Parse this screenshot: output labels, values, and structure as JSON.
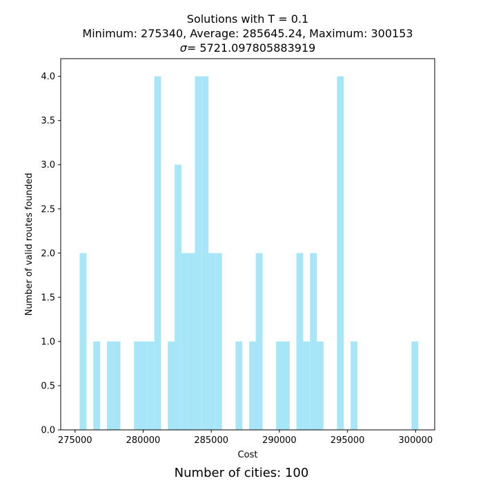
{
  "chart_data": {
    "type": "bar",
    "title_line1": "Solutions with T = 0.1",
    "title_line2": "Minimum: 275340, Average: 285645.24, Maximum: 300153",
    "title_sigma_symbol": "σ",
    "title_sigma_value": "= 5721.097805883919",
    "xlabel": "Cost",
    "ylabel": "Number of valid routes founded",
    "xlim": [
      273950,
      301400
    ],
    "ylim": [
      0,
      4.2
    ],
    "xticks": [
      275000,
      280000,
      285000,
      290000,
      295000,
      300000
    ],
    "yticks": [
      "0.0",
      "0.5",
      "1.0",
      "1.5",
      "2.0",
      "2.5",
      "3.0",
      "3.5",
      "4.0"
    ],
    "bin_width": 496.26,
    "bar_color": "#a6e6f8",
    "bins": [
      {
        "x": 275340,
        "count": 2
      },
      {
        "x": 276340,
        "count": 1
      },
      {
        "x": 277340,
        "count": 1
      },
      {
        "x": 277830,
        "count": 1
      },
      {
        "x": 279330,
        "count": 1
      },
      {
        "x": 279820,
        "count": 1
      },
      {
        "x": 280320,
        "count": 1
      },
      {
        "x": 280820,
        "count": 4
      },
      {
        "x": 281810,
        "count": 1
      },
      {
        "x": 282310,
        "count": 3
      },
      {
        "x": 282810,
        "count": 2
      },
      {
        "x": 283300,
        "count": 2
      },
      {
        "x": 283800,
        "count": 4
      },
      {
        "x": 284300,
        "count": 4
      },
      {
        "x": 284790,
        "count": 2
      },
      {
        "x": 285290,
        "count": 2
      },
      {
        "x": 286780,
        "count": 1
      },
      {
        "x": 287780,
        "count": 1
      },
      {
        "x": 288270,
        "count": 2
      },
      {
        "x": 289760,
        "count": 1
      },
      {
        "x": 290260,
        "count": 1
      },
      {
        "x": 291250,
        "count": 2
      },
      {
        "x": 291750,
        "count": 1
      },
      {
        "x": 292250,
        "count": 2
      },
      {
        "x": 292740,
        "count": 1
      },
      {
        "x": 294230,
        "count": 4
      },
      {
        "x": 295230,
        "count": 1
      },
      {
        "x": 299700,
        "count": 1
      }
    ]
  },
  "footer": "Number of cities: 100"
}
